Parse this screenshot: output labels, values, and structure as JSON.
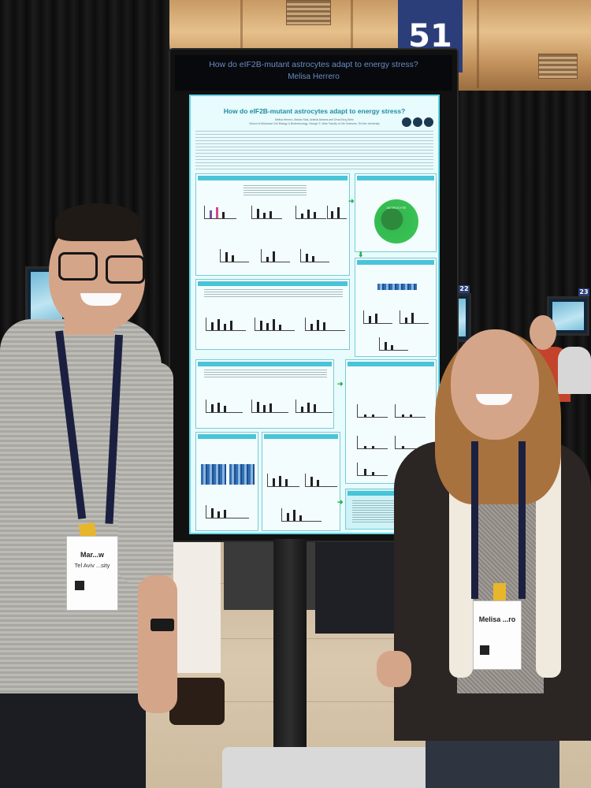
{
  "scene": {
    "booth_number": "51",
    "side_screen_numbers": [
      "22",
      "23"
    ]
  },
  "monitor": {
    "header_title": "How do eIF2B-mutant astrocytes adapt to energy stress?",
    "header_author": "Melisa Herrero"
  },
  "poster": {
    "title": "How do eIF2B-mutant astrocytes adapt to energy stress?",
    "authors": "Melisa Herrero, Marian Shai, Avishai Abrams and Orna Elroy-Stein",
    "affiliation": "School of Molecular Cell Biology & Biotechnology, George S. Wise Faculty of Life Sciences, Tel Aviv University",
    "panel_label": "ASTROCYTE",
    "accent_color": "#49c4d8",
    "arrow_color": "#26b24a"
  },
  "people": {
    "left_badge_name": "Mar...w",
    "left_badge_institution": "Tel Aviv ...sity",
    "right_badge_name": "Melisa ...ro"
  }
}
